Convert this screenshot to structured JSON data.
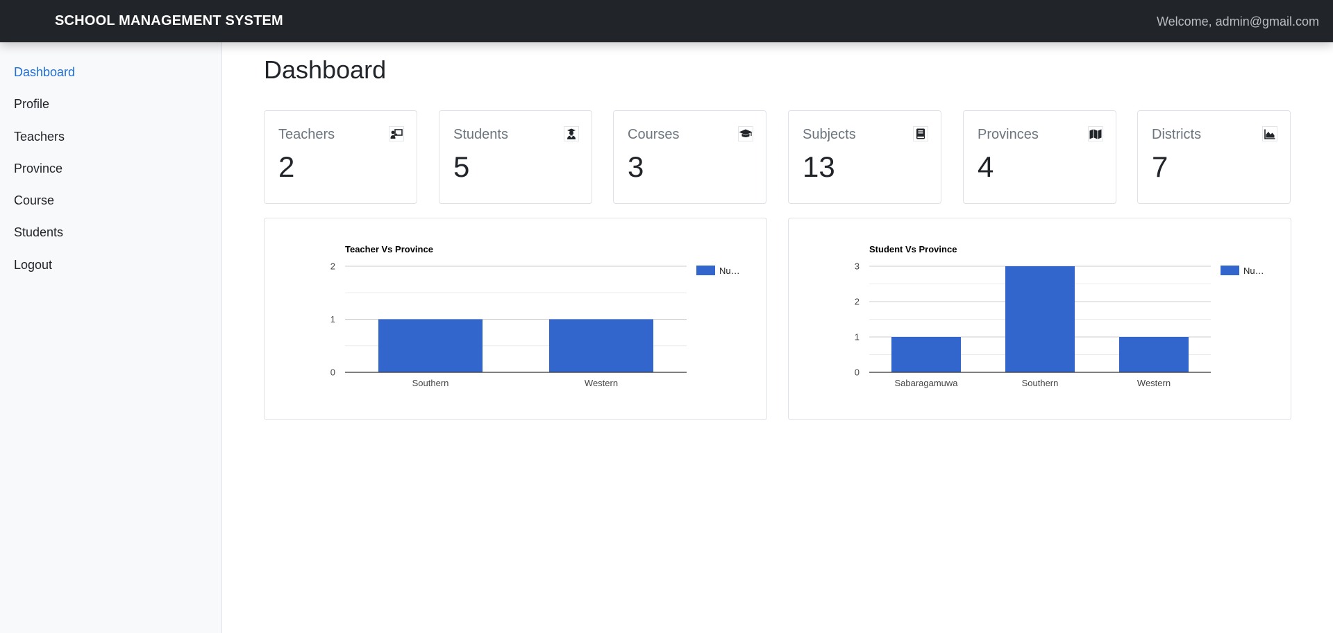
{
  "header": {
    "brand": "SCHOOL MANAGEMENT SYSTEM",
    "welcome": "Welcome, admin@gmail.com"
  },
  "sidebar": {
    "items": [
      {
        "label": "Dashboard",
        "active": true
      },
      {
        "label": "Profile",
        "active": false
      },
      {
        "label": "Teachers",
        "active": false
      },
      {
        "label": "Province",
        "active": false
      },
      {
        "label": "Course",
        "active": false
      },
      {
        "label": "Students",
        "active": false
      },
      {
        "label": "Logout",
        "active": false
      }
    ]
  },
  "main": {
    "title": "Dashboard",
    "cards": [
      {
        "label": "Teachers",
        "value": "2",
        "icon": "teacher-board-icon"
      },
      {
        "label": "Students",
        "value": "5",
        "icon": "graduate-student-icon"
      },
      {
        "label": "Courses",
        "value": "3",
        "icon": "graduation-cap-icon"
      },
      {
        "label": "Subjects",
        "value": "13",
        "icon": "book-icon"
      },
      {
        "label": "Provinces",
        "value": "4",
        "icon": "map-icon"
      },
      {
        "label": "Districts",
        "value": "7",
        "icon": "area-chart-icon"
      }
    ]
  },
  "colors": {
    "accent": "#1f6fd6",
    "bar": "#3366cc",
    "topbar": "#212529"
  },
  "chart_data": [
    {
      "type": "bar",
      "title": "Teacher Vs Province",
      "categories": [
        "Southern",
        "Western"
      ],
      "series": [
        {
          "name": "Nu…",
          "values": [
            1,
            1
          ]
        }
      ],
      "ylim": [
        0,
        2
      ],
      "yticks": [
        0,
        1,
        2
      ],
      "legend": "right",
      "grid": true
    },
    {
      "type": "bar",
      "title": "Student Vs Province",
      "categories": [
        "Sabaragamuwa",
        "Southern",
        "Western"
      ],
      "series": [
        {
          "name": "Nu…",
          "values": [
            1,
            3,
            1
          ]
        }
      ],
      "ylim": [
        0,
        3
      ],
      "yticks": [
        0,
        1,
        2,
        3
      ],
      "legend": "right",
      "grid": true
    }
  ]
}
